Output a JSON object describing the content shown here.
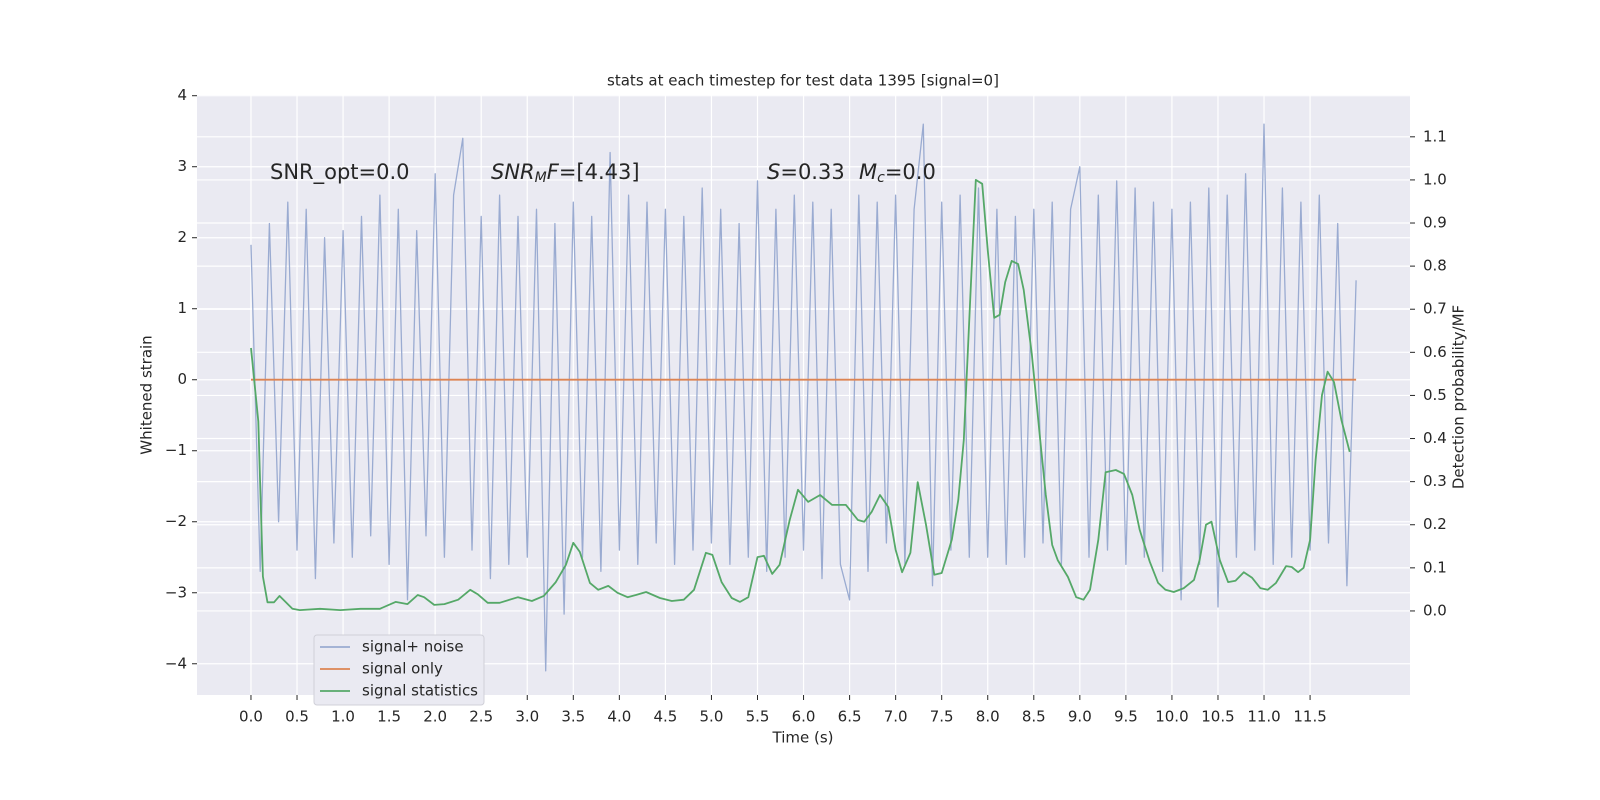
{
  "chart_data": {
    "type": "line",
    "title": "stats at each timestep for test data 1395 [signal=0]",
    "xlabel": "Time (s)",
    "ylabel": "Whitened strain",
    "y2label": "Detection probability/MF",
    "xlim": [
      -0.586,
      12.585
    ],
    "ylim": [
      -4.44,
      4.01
    ],
    "y2lim": [
      -0.195,
      1.197
    ],
    "xticks": [
      {
        "value": 0,
        "label": "0.0"
      },
      0.5,
      {
        "value": 1,
        "label": "1.0"
      },
      1.5,
      {
        "value": 2,
        "label": "2.0"
      },
      2.5,
      {
        "value": 3,
        "label": "3.0"
      },
      3.5,
      {
        "value": 4,
        "label": "4.0"
      },
      4.5,
      {
        "value": 5,
        "label": "5.0"
      },
      5.5,
      {
        "value": 6,
        "label": "6.0"
      },
      6.5,
      {
        "value": 7,
        "label": "7.0"
      },
      7.5,
      {
        "value": 8,
        "label": "8.0"
      },
      8.5,
      {
        "value": 9,
        "label": "9.0"
      },
      9.5,
      {
        "value": 10,
        "label": "10.0"
      },
      10.5,
      {
        "value": 11,
        "label": "11.0"
      },
      11.5
    ],
    "yticks": [
      {
        "value": -4,
        "label": "−4"
      },
      {
        "value": -3,
        "label": "−3"
      },
      {
        "value": -2,
        "label": "−2"
      },
      {
        "value": -1,
        "label": "−1"
      },
      0,
      1,
      2,
      3,
      4
    ],
    "y2ticks": [
      {
        "value": 0,
        "label": "0.0"
      },
      0.1,
      0.2,
      0.3,
      0.4,
      0.5,
      0.6,
      0.7,
      0.8,
      0.9,
      {
        "value": 1,
        "label": "1.0"
      },
      1.1
    ],
    "grid": true,
    "legend": "lower left",
    "annotations": [
      [
        {
          "text": "SNR_opt=0.0"
        }
      ],
      [
        {
          "text": "SNR",
          "italic": true
        },
        {
          "text": "M",
          "italic": true,
          "sub": true
        },
        {
          "text": "F",
          "italic": true
        },
        {
          "text": "=[4.43]"
        }
      ],
      [
        {
          "text": "S",
          "italic": true
        },
        {
          "text": "=0.33"
        }
      ],
      [
        {
          "text": "M",
          "italic": true
        },
        {
          "text": "c",
          "italic": true,
          "sub": true
        },
        {
          "text": "=0.0"
        }
      ]
    ],
    "series": [
      {
        "name": "signal+ noise",
        "color": "#9aabd1",
        "x": [
          0,
          0.1,
          0.2,
          0.3,
          0.4,
          0.5,
          0.6,
          0.7,
          0.8,
          0.9,
          1,
          1.1,
          1.2,
          1.3,
          1.4,
          1.5,
          1.6,
          1.7,
          1.8,
          1.9,
          2,
          2.1,
          2.2,
          2.3,
          2.4,
          2.5,
          2.6,
          2.7,
          2.8,
          2.9,
          3,
          3.1,
          3.2,
          3.3,
          3.4,
          3.5,
          3.6,
          3.7,
          3.8,
          3.9,
          4,
          4.1,
          4.2,
          4.3,
          4.4,
          4.5,
          4.6,
          4.7,
          4.8,
          4.9,
          5,
          5.1,
          5.2,
          5.3,
          5.4,
          5.5,
          5.6,
          5.7,
          5.8,
          5.9,
          6,
          6.1,
          6.2,
          6.3,
          6.4,
          6.5,
          6.6,
          6.7,
          6.8,
          6.9,
          7,
          7.1,
          7.2,
          7.3,
          7.4,
          7.5,
          7.6,
          7.7,
          7.8,
          7.9,
          8,
          8.1,
          8.2,
          8.3,
          8.4,
          8.5,
          8.6,
          8.7,
          8.8,
          8.9,
          9,
          9.1,
          9.2,
          9.3,
          9.4,
          9.5,
          9.6,
          9.7,
          9.8,
          9.9,
          10,
          10.1,
          10.2,
          10.3,
          10.4,
          10.5,
          10.6,
          10.7,
          10.8,
          10.9,
          11,
          11.1,
          11.2,
          11.3,
          11.4,
          11.5,
          11.6,
          11.7,
          11.8,
          11.9,
          12
        ],
        "values": [
          1.9,
          -2.7,
          2.2,
          -2.0,
          2.5,
          -2.4,
          2.4,
          -2.8,
          2.0,
          -2.3,
          2.1,
          -2.5,
          2.3,
          -2.2,
          2.6,
          -2.6,
          2.4,
          -3.1,
          2.1,
          -2.2,
          2.9,
          -2.5,
          2.6,
          3.4,
          -2.4,
          2.3,
          -2.8,
          2.6,
          -2.6,
          2.3,
          -2.5,
          2.4,
          -4.1,
          2.2,
          -3.3,
          2.5,
          -2.5,
          2.3,
          -2.7,
          3.2,
          -2.4,
          2.6,
          -2.6,
          2.5,
          -2.3,
          2.4,
          -2.6,
          2.3,
          -2.4,
          2.7,
          -2.3,
          2.4,
          -2.6,
          2.2,
          -2.5,
          2.8,
          -2.7,
          2.4,
          -2.5,
          2.6,
          -2.4,
          2.5,
          -2.8,
          2.4,
          -2.6,
          -3.1,
          2.6,
          -2.7,
          2.5,
          -2.3,
          2.6,
          -2.6,
          2.4,
          3.6,
          -2.9,
          2.5,
          -2.4,
          2.6,
          -2.5,
          2.7,
          -2.5,
          2.4,
          -2.6,
          2.3,
          -2.5,
          2.4,
          -2.3,
          2.5,
          -2.6,
          2.4,
          3.0,
          -2.5,
          2.6,
          -2.4,
          2.8,
          -2.6,
          2.7,
          -2.5,
          2.5,
          -2.7,
          2.4,
          -3.1,
          2.5,
          -2.6,
          2.7,
          -3.2,
          2.6,
          -2.5,
          2.9,
          -2.4,
          3.6,
          -2.6,
          2.7,
          -2.5,
          2.5,
          -2.4,
          2.6,
          -2.3,
          2.2,
          -2.9,
          1.4
        ]
      },
      {
        "name": "signal only",
        "color": "#dd8452",
        "x": [
          0,
          12
        ],
        "values": [
          0,
          0
        ]
      },
      {
        "name": "signal statistics",
        "color": "#55a868",
        "axis": "y2",
        "x": [
          0,
          0.08,
          0.13,
          0.18,
          0.25,
          0.31,
          0.45,
          0.53,
          0.75,
          0.97,
          1.19,
          1.4,
          1.57,
          1.7,
          1.81,
          1.88,
          1.99,
          2.1,
          2.25,
          2.38,
          2.46,
          2.57,
          2.7,
          2.9,
          3.05,
          3.18,
          3.31,
          3.42,
          3.5,
          3.57,
          3.68,
          3.77,
          3.88,
          3.98,
          4.09,
          4.18,
          4.29,
          4.44,
          4.57,
          4.7,
          4.81,
          4.94,
          5.01,
          5.11,
          5.22,
          5.31,
          5.4,
          5.5,
          5.57,
          5.66,
          5.74,
          5.85,
          5.94,
          6.05,
          6.18,
          6.31,
          6.46,
          6.59,
          6.66,
          6.74,
          6.83,
          6.92,
          7.0,
          7.07,
          7.16,
          7.24,
          7.33,
          7.42,
          7.5,
          7.61,
          7.68,
          7.74,
          7.81,
          7.87,
          7.94,
          8.0,
          8.07,
          8.13,
          8.19,
          8.26,
          8.33,
          8.39,
          8.48,
          8.57,
          8.63,
          8.7,
          8.76,
          8.87,
          8.96,
          9.04,
          9.11,
          9.2,
          9.28,
          9.39,
          9.48,
          9.57,
          9.65,
          9.76,
          9.85,
          9.93,
          10.02,
          10.13,
          10.24,
          10.3,
          10.37,
          10.43,
          10.52,
          10.61,
          10.69,
          10.78,
          10.87,
          10.96,
          11.04,
          11.13,
          11.24,
          11.3,
          11.37,
          11.43,
          11.5,
          11.56,
          11.63,
          11.69,
          11.76,
          11.84,
          11.93
        ],
        "values": [
          0.61,
          0.44,
          0.08,
          0.02,
          0.02,
          0.035,
          0.005,
          0.002,
          0.005,
          0.002,
          0.005,
          0.005,
          0.021,
          0.016,
          0.037,
          0.032,
          0.014,
          0.016,
          0.026,
          0.049,
          0.039,
          0.019,
          0.019,
          0.032,
          0.023,
          0.035,
          0.067,
          0.107,
          0.158,
          0.137,
          0.065,
          0.049,
          0.058,
          0.042,
          0.032,
          0.037,
          0.044,
          0.03,
          0.023,
          0.026,
          0.049,
          0.135,
          0.13,
          0.067,
          0.03,
          0.021,
          0.032,
          0.125,
          0.128,
          0.086,
          0.107,
          0.211,
          0.281,
          0.253,
          0.269,
          0.246,
          0.246,
          0.211,
          0.207,
          0.23,
          0.269,
          0.241,
          0.142,
          0.09,
          0.135,
          0.299,
          0.2,
          0.084,
          0.088,
          0.165,
          0.258,
          0.397,
          0.722,
          1.0,
          0.991,
          0.838,
          0.68,
          0.687,
          0.763,
          0.812,
          0.805,
          0.745,
          0.594,
          0.397,
          0.269,
          0.153,
          0.118,
          0.079,
          0.032,
          0.026,
          0.049,
          0.165,
          0.322,
          0.327,
          0.318,
          0.269,
          0.188,
          0.114,
          0.065,
          0.049,
          0.044,
          0.053,
          0.072,
          0.118,
          0.2,
          0.207,
          0.118,
          0.067,
          0.07,
          0.09,
          0.077,
          0.053,
          0.049,
          0.065,
          0.104,
          0.102,
          0.09,
          0.1,
          0.165,
          0.35,
          0.501,
          0.555,
          0.531,
          0.443,
          0.369
        ]
      }
    ]
  }
}
